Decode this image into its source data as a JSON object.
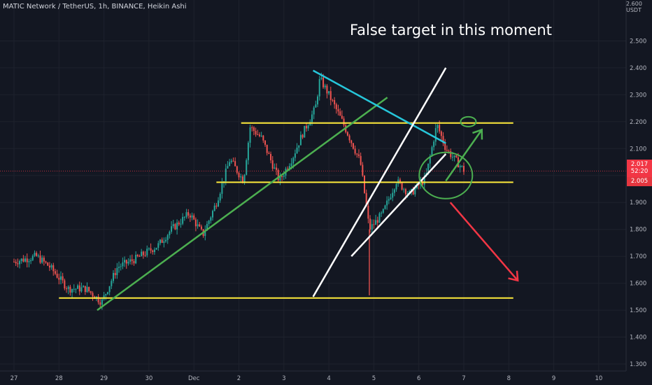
{
  "header": {
    "symbol_line": "MATIC Network / TetherUS, 1h, BINANCE, Heikin Ashi"
  },
  "price_scale": {
    "currency": "USDT",
    "top_partial_label": "2.600"
  },
  "price_tags": {
    "last_price": "2.017",
    "countdown": "52:20",
    "level_price": "2.005"
  },
  "annotation_text": "False target in this moment",
  "colors": {
    "background": "#131722",
    "up_candle": "#26a69a",
    "down_candle": "#ef5350",
    "trendline_green": "#4caf50",
    "resistance_yellow": "#ffeb3b",
    "channel_white": "#ffffff",
    "downtrend_cyan": "#26c6da",
    "arrow_red": "#f23645",
    "circle_green": "#4caf50"
  },
  "chart_data": {
    "type": "candlestick",
    "title": "MATIC Network / TetherUS, 1h, BINANCE, Heikin Ashi",
    "x_axis_labels": [
      "27",
      "28",
      "29",
      "30",
      "Dec",
      "2",
      "3",
      "4",
      "5",
      "6",
      "7",
      "8",
      "9",
      "10"
    ],
    "y_axis_labels": [
      "2.500",
      "2.400",
      "2.300",
      "2.200",
      "2.100",
      "2.000",
      "1.900",
      "1.800",
      "1.700",
      "1.600",
      "1.500",
      "1.400",
      "1.300"
    ],
    "ylim": [
      1.3,
      2.6
    ],
    "anchors": [
      {
        "day": 27,
        "price": 1.68
      },
      {
        "day": 27.5,
        "price": 1.7
      },
      {
        "day": 27.8,
        "price": 1.66
      },
      {
        "day": 28.2,
        "price": 1.58
      },
      {
        "day": 28.6,
        "price": 1.58
      },
      {
        "day": 28.95,
        "price": 1.53
      },
      {
        "day": 29.3,
        "price": 1.66
      },
      {
        "day": 29.7,
        "price": 1.69
      },
      {
        "day": 30.2,
        "price": 1.74
      },
      {
        "day": 30.5,
        "price": 1.8
      },
      {
        "day": 30.9,
        "price": 1.86
      },
      {
        "day": 31.2,
        "price": 1.78
      },
      {
        "day": 31.5,
        "price": 1.9
      },
      {
        "day": 31.8,
        "price": 2.06
      },
      {
        "day": 32.1,
        "price": 1.98
      },
      {
        "day": 32.25,
        "price": 2.18
      },
      {
        "day": 32.5,
        "price": 2.14
      },
      {
        "day": 32.9,
        "price": 1.98
      },
      {
        "day": 33.2,
        "price": 2.07
      },
      {
        "day": 33.4,
        "price": 2.15
      },
      {
        "day": 33.7,
        "price": 2.25
      },
      {
        "day": 33.8,
        "price": 2.36
      },
      {
        "day": 34.0,
        "price": 2.3
      },
      {
        "day": 34.3,
        "price": 2.2
      },
      {
        "day": 34.7,
        "price": 2.05
      },
      {
        "day": 34.9,
        "price": 1.8
      },
      {
        "day": 35.2,
        "price": 1.86
      },
      {
        "day": 35.5,
        "price": 1.98
      },
      {
        "day": 35.8,
        "price": 1.93
      },
      {
        "day": 36.15,
        "price": 1.99
      },
      {
        "day": 36.4,
        "price": 2.19
      },
      {
        "day": 36.6,
        "price": 2.1
      },
      {
        "day": 37.0,
        "price": 2.02
      }
    ],
    "drawings": [
      {
        "kind": "support",
        "color": "yellow",
        "price": 1.545,
        "from_day": 28.0,
        "to_day": 38.1
      },
      {
        "kind": "support",
        "color": "yellow",
        "price": 1.975,
        "from_day": 31.5,
        "to_day": 38.1
      },
      {
        "kind": "resistance",
        "color": "yellow",
        "price": 2.195,
        "from_day": 32.05,
        "to_day": 38.1
      },
      {
        "kind": "trendline",
        "color": "green",
        "from": {
          "day": 28.85,
          "price": 1.5
        },
        "to": {
          "day": 35.3,
          "price": 2.29
        }
      },
      {
        "kind": "trendline",
        "color": "cyan",
        "from": {
          "day": 33.65,
          "price": 2.39
        },
        "to": {
          "day": 36.6,
          "price": 2.12
        }
      },
      {
        "kind": "channel",
        "color": "white",
        "from": {
          "day": 33.65,
          "price": 1.55
        },
        "to": {
          "day": 36.6,
          "price": 2.4
        }
      },
      {
        "kind": "channel",
        "color": "white",
        "from": {
          "day": 34.5,
          "price": 1.7
        },
        "to": {
          "day": 36.6,
          "price": 2.08
        }
      },
      {
        "kind": "arrow",
        "color": "green",
        "from": {
          "day": 36.6,
          "price": 1.98
        },
        "to": {
          "day": 37.4,
          "price": 2.17
        }
      },
      {
        "kind": "arrow",
        "color": "red",
        "from": {
          "day": 36.7,
          "price": 1.9
        },
        "to": {
          "day": 38.2,
          "price": 1.61
        }
      },
      {
        "kind": "circle",
        "color": "green",
        "center": {
          "day": 36.6,
          "price": 2.0
        }
      },
      {
        "kind": "circle",
        "color": "green",
        "center": {
          "day": 37.1,
          "price": 2.2
        }
      }
    ]
  }
}
